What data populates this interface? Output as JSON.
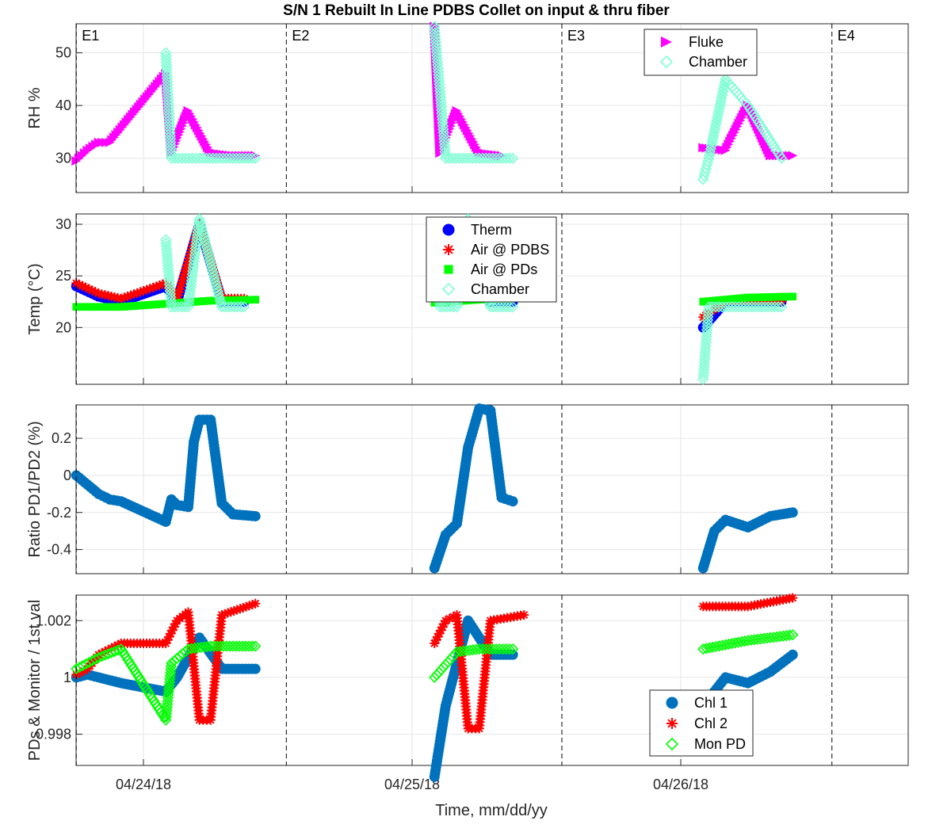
{
  "figure": {
    "title": "S/N 1 Rebuilt In Line PDBS Collet on input & thru fiber",
    "xlabel": "Time, mm/dd/yy",
    "xticks": [
      "04/24/18",
      "04/25/18",
      "04/26/18"
    ],
    "events": [
      "E1",
      "E2",
      "E3",
      "E4"
    ]
  },
  "colors": {
    "fluke": "#ff00ff",
    "chamber": "#7fffd4",
    "therm": "#0000ff",
    "air_pdbs": "#ff0000",
    "air_pds": "#00ff00",
    "ratio": "#0072bd",
    "chl1": "#0072bd",
    "chl2": "#ff0000",
    "mon_pd": "#00ff00"
  },
  "chart_data": [
    {
      "type": "scatter",
      "title": "",
      "xlabel": "",
      "ylabel": "RH %",
      "ylim": [
        23.5,
        55.5
      ],
      "yticks": [
        "30",
        "40",
        "50"
      ],
      "grid": true,
      "legend_position": "top-right",
      "legend": [
        "Fluke",
        "Chamber"
      ],
      "series": [
        {
          "name": "Fluke",
          "marker": "triangle-right",
          "x": [
            "04/23/18 18:00",
            "04/23/18 19:00",
            "04/23/18 20:00",
            "04/23/18 21:00",
            "04/24/18 02:00",
            "04/24/18 02:30",
            "04/24/18 04:00",
            "04/24/18 06:00",
            "04/24/18 08:00",
            "04/24/18 10:00",
            "04/25/18 02:00",
            "04/25/18 02:30",
            "04/25/18 04:00",
            "04/25/18 06:00",
            "04/25/18 08:00",
            "04/26/18 02:00",
            "04/26/18 04:00",
            "04/26/18 06:00",
            "04/26/18 08:00",
            "04/26/18 10:00"
          ],
          "y": [
            29.5,
            31.5,
            33,
            33,
            46,
            31,
            39,
            31,
            30.5,
            30.5,
            55,
            31,
            39,
            31,
            30.5,
            32,
            31.5,
            40,
            30.5,
            30.5
          ]
        },
        {
          "name": "Chamber",
          "marker": "diamond",
          "x": [
            "04/24/18 02:00",
            "04/24/18 02:30",
            "04/24/18 05:00",
            "04/24/18 08:00",
            "04/24/18 10:00",
            "04/25/18 02:00",
            "04/25/18 03:00",
            "04/25/18 06:00",
            "04/25/18 09:00",
            "04/26/18 02:00",
            "04/26/18 02:30",
            "04/26/18 04:00",
            "04/26/18 06:00",
            "04/26/18 09:00"
          ],
          "y": [
            50,
            30,
            30,
            30,
            30,
            55,
            30,
            30,
            30,
            26,
            30,
            45,
            40,
            30
          ]
        }
      ]
    },
    {
      "type": "scatter",
      "title": "",
      "xlabel": "",
      "ylabel": "Temp (°C)",
      "ylim": [
        14.5,
        31
      ],
      "yticks": [
        "20",
        "25",
        "30"
      ],
      "grid": true,
      "legend_position": "top-center",
      "legend": [
        "Therm",
        "Air @ PDBS",
        "Air @ PDs",
        "Chamber"
      ],
      "series": [
        {
          "name": "Therm",
          "marker": "circle",
          "x": [
            "04/23/18 18:00",
            "04/23/18 20:00",
            "04/23/18 22:00",
            "04/24/18 02:00",
            "04/24/18 03:00",
            "04/24/18 05:00",
            "04/24/18 07:00",
            "04/24/18 09:00",
            "04/25/18 02:00",
            "04/25/18 03:00",
            "04/25/18 05:00",
            "04/25/18 07:00",
            "04/25/18 09:00",
            "04/26/18 02:00",
            "04/26/18 04:00",
            "04/26/18 09:00"
          ],
          "y": [
            24,
            23,
            22.5,
            24,
            22.5,
            30,
            22.5,
            22.5,
            24,
            22.5,
            30,
            22.5,
            22.5,
            20,
            22.5,
            22.5
          ]
        },
        {
          "name": "Air @ PDBS",
          "marker": "asterisk",
          "x": [
            "04/23/18 18:00",
            "04/23/18 20:00",
            "04/23/18 22:00",
            "04/24/18 02:00",
            "04/24/18 03:00",
            "04/24/18 05:00",
            "04/24/18 07:00",
            "04/24/18 09:00",
            "04/25/18 02:00",
            "04/25/18 03:00",
            "04/25/18 05:00",
            "04/25/18 07:00",
            "04/25/18 09:00",
            "04/26/18 02:00",
            "04/26/18 04:00",
            "04/26/18 09:00"
          ],
          "y": [
            24.3,
            23.3,
            22.8,
            24.3,
            22.8,
            30,
            22.8,
            22.8,
            24.3,
            22.8,
            30,
            22.8,
            22.8,
            21,
            22.5,
            22.5
          ]
        },
        {
          "name": "Air @ PDs",
          "marker": "square",
          "x": [
            "04/23/18 18:00",
            "04/23/18 22:00",
            "04/24/18 02:00",
            "04/24/18 06:00",
            "04/24/18 10:00",
            "04/25/18 02:00",
            "04/25/18 06:00",
            "04/25/18 09:00",
            "04/26/18 02:00",
            "04/26/18 06:00",
            "04/26/18 10:00"
          ],
          "y": [
            22,
            22,
            22.3,
            22.6,
            22.7,
            22.4,
            22.7,
            22.8,
            22.5,
            22.9,
            23
          ]
        },
        {
          "name": "Chamber",
          "marker": "diamond",
          "x": [
            "04/24/18 02:00",
            "04/24/18 02:30",
            "04/24/18 04:00",
            "04/24/18 05:00",
            "04/24/18 07:00",
            "04/24/18 09:00",
            "04/25/18 02:00",
            "04/25/18 02:30",
            "04/25/18 04:00",
            "04/25/18 05:00",
            "04/25/18 07:00",
            "04/25/18 09:00",
            "04/26/18 02:00",
            "04/26/18 02:30",
            "04/26/18 04:00",
            "04/26/18 09:00"
          ],
          "y": [
            28.5,
            22,
            22,
            30.5,
            22,
            22,
            28.5,
            22,
            22,
            30.5,
            22,
            22,
            15,
            22,
            22,
            22
          ]
        }
      ]
    },
    {
      "type": "scatter",
      "title": "",
      "xlabel": "",
      "ylabel": "Ratio PD1/PD2 (%)",
      "ylim": [
        -0.53,
        0.38
      ],
      "yticks": [
        "-0.4",
        "-0.2",
        "0",
        "0.2"
      ],
      "grid": true,
      "legend_position": "none",
      "legend": [],
      "series": [
        {
          "name": "",
          "marker": "circle",
          "x": [
            "04/23/18 18:00",
            "04/23/18 19:00",
            "04/23/18 20:00",
            "04/23/18 21:00",
            "04/23/18 22:00",
            "04/24/18 02:00",
            "04/24/18 02:30",
            "04/24/18 03:00",
            "04/24/18 04:00",
            "04/24/18 04:30",
            "04/24/18 05:00",
            "04/24/18 06:00",
            "04/24/18 07:00",
            "04/24/18 08:00",
            "04/24/18 10:00",
            "04/25/18 02:00",
            "04/25/18 03:00",
            "04/25/18 04:00",
            "04/25/18 05:00",
            "04/25/18 06:00",
            "04/25/18 07:00",
            "04/25/18 08:00",
            "04/25/18 09:00",
            "04/26/18 02:00",
            "04/26/18 03:00",
            "04/26/18 04:00",
            "04/26/18 06:00",
            "04/26/18 08:00",
            "04/26/18 10:00"
          ],
          "y": [
            0,
            -0.05,
            -0.1,
            -0.13,
            -0.14,
            -0.25,
            -0.13,
            -0.16,
            -0.17,
            0.18,
            0.3,
            0.3,
            -0.15,
            -0.21,
            -0.22,
            -0.5,
            -0.32,
            -0.26,
            0.15,
            0.36,
            0.35,
            -0.12,
            -0.14,
            -0.5,
            -0.3,
            -0.24,
            -0.28,
            -0.22,
            -0.2
          ]
        }
      ]
    },
    {
      "type": "scatter",
      "title": "",
      "xlabel": "Time, mm/dd/yy",
      "ylabel": "PDs & Monitor / 1st val",
      "ylim": [
        0.9969,
        1.0029
      ],
      "yticks": [
        "0.998",
        "1",
        "1.002"
      ],
      "grid": true,
      "legend_position": "bottom-right",
      "legend": [
        "Chl 1",
        "Chl 2",
        "Mon PD"
      ],
      "series": [
        {
          "name": "Chl 1",
          "marker": "circle",
          "x": [
            "04/23/18 18:00",
            "04/23/18 19:00",
            "04/23/18 20:00",
            "04/23/18 22:00",
            "04/24/18 02:00",
            "04/24/18 03:00",
            "04/24/18 05:00",
            "04/24/18 07:00",
            "04/24/18 10:00",
            "04/25/18 02:00",
            "04/25/18 03:00",
            "04/25/18 05:00",
            "04/25/18 07:00",
            "04/25/18 09:00",
            "04/26/18 02:00",
            "04/26/18 03:00",
            "04/26/18 04:00",
            "04/26/18 06:00",
            "04/26/18 08:00",
            "04/26/18 10:00"
          ],
          "y": [
            1.0,
            1.0001,
            1.0,
            0.9998,
            0.9995,
            1.0,
            1.0014,
            1.0003,
            1.0003,
            0.9965,
            0.999,
            1.002,
            1.0008,
            1.0008,
            0.998,
            0.9995,
            1.0,
            0.9998,
            1.0002,
            1.0008
          ]
        },
        {
          "name": "Chl 2",
          "marker": "asterisk",
          "x": [
            "04/23/18 18:00",
            "04/23/18 19:00",
            "04/23/18 20:00",
            "04/23/18 22:00",
            "04/24/18 02:00",
            "04/24/18 03:00",
            "04/24/18 04:00",
            "04/24/18 05:00",
            "04/24/18 06:00",
            "04/24/18 07:00",
            "04/24/18 10:00",
            "04/25/18 02:00",
            "04/25/18 03:00",
            "04/25/18 04:00",
            "04/25/18 05:00",
            "04/25/18 06:00",
            "04/25/18 07:00",
            "04/25/18 10:00",
            "04/26/18 02:00",
            "04/26/18 06:00",
            "04/26/18 10:00"
          ],
          "y": [
            1.0001,
            1.0003,
            1.0008,
            1.0012,
            1.0012,
            1.002,
            1.0023,
            0.9985,
            0.9985,
            1.0022,
            1.0026,
            1.0012,
            1.002,
            1.0022,
            0.9982,
            0.9982,
            1.002,
            1.0022,
            1.0025,
            1.0025,
            1.0028
          ]
        },
        {
          "name": "Mon PD",
          "marker": "diamond",
          "x": [
            "04/23/18 18:00",
            "04/23/18 20:00",
            "04/23/18 22:00",
            "04/24/18 02:00",
            "04/24/18 02:30",
            "04/24/18 04:00",
            "04/24/18 06:00",
            "04/24/18 10:00",
            "04/25/18 02:00",
            "04/25/18 04:00",
            "04/25/18 06:00",
            "04/25/18 09:00",
            "04/26/18 02:00",
            "04/26/18 06:00",
            "04/26/18 10:00"
          ],
          "y": [
            1.0003,
            1.0007,
            1.001,
            0.9985,
            1.0005,
            1.001,
            1.0011,
            1.0011,
            1.0,
            1.0009,
            1.001,
            1.001,
            1.001,
            1.0013,
            1.0015
          ]
        }
      ]
    }
  ]
}
